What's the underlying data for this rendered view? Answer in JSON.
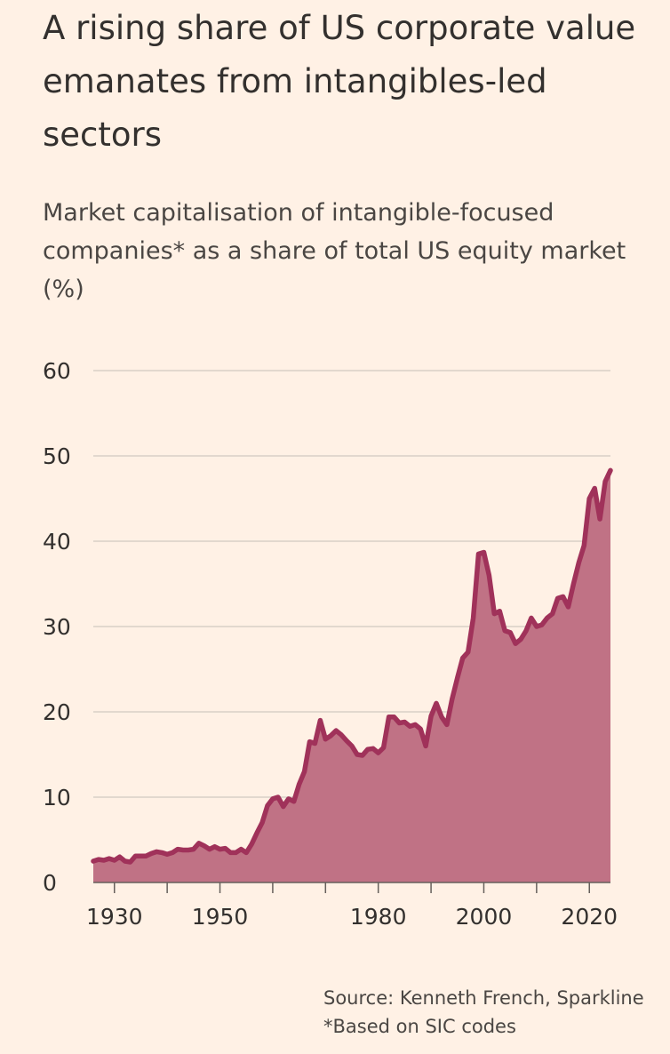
{
  "title": "A rising share of US corporate value emanates from intangibles-led sectors",
  "subtitle": "Market capitalisation of intangible-focused companies* as a share of total US equity market (%)",
  "source": "Source: Kenneth French, Sparkline",
  "footnote": "*Based on SIC codes",
  "colors": {
    "background": "#FFF1E5",
    "line": "#A0325A",
    "fill": "#C07285",
    "grid": "#D9CFC7",
    "text": "#33302E"
  },
  "chart_data": {
    "type": "area",
    "title": "A rising share of US corporate value emanates from intangibles-led sectors",
    "subtitle": "Market capitalisation of intangible-focused companies* as a share of total US equity market (%)",
    "xlabel": "",
    "ylabel": "",
    "xlim": [
      1926,
      2024
    ],
    "ylim": [
      0,
      60
    ],
    "grid": true,
    "legend": "none",
    "x_ticks": [
      1930,
      1950,
      1980,
      2000,
      2020
    ],
    "y_ticks": [
      0,
      10,
      20,
      30,
      40,
      50,
      60
    ],
    "x": [
      1926,
      1927,
      1928,
      1929,
      1930,
      1931,
      1932,
      1933,
      1934,
      1935,
      1936,
      1937,
      1938,
      1939,
      1940,
      1941,
      1942,
      1943,
      1944,
      1945,
      1946,
      1947,
      1948,
      1949,
      1950,
      1951,
      1952,
      1953,
      1954,
      1955,
      1956,
      1957,
      1958,
      1959,
      1960,
      1961,
      1962,
      1963,
      1964,
      1965,
      1966,
      1967,
      1968,
      1969,
      1970,
      1971,
      1972,
      1973,
      1974,
      1975,
      1976,
      1977,
      1978,
      1979,
      1980,
      1981,
      1982,
      1983,
      1984,
      1985,
      1986,
      1987,
      1988,
      1989,
      1990,
      1991,
      1992,
      1993,
      1994,
      1995,
      1996,
      1997,
      1998,
      1999,
      2000,
      2001,
      2002,
      2003,
      2004,
      2005,
      2006,
      2007,
      2008,
      2009,
      2010,
      2011,
      2012,
      2013,
      2014,
      2015,
      2016,
      2017,
      2018,
      2019,
      2020,
      2021,
      2022,
      2023,
      2024
    ],
    "series": [
      {
        "values": [
          2.5,
          2.7,
          2.6,
          2.8,
          2.6,
          3.0,
          2.5,
          2.4,
          3.1,
          3.1,
          3.1,
          3.4,
          3.6,
          3.5,
          3.3,
          3.5,
          3.9,
          3.8,
          3.8,
          3.9,
          4.6,
          4.3,
          3.9,
          4.2,
          3.9,
          4.0,
          3.5,
          3.5,
          3.9,
          3.5,
          4.5,
          5.8,
          7.0,
          9.0,
          9.8,
          10.0,
          8.9,
          9.8,
          9.5,
          11.5,
          13.0,
          16.5,
          16.3,
          19.0,
          16.8,
          17.2,
          17.8,
          17.3,
          16.6,
          16.0,
          15.0,
          14.9,
          15.6,
          15.7,
          15.2,
          15.8,
          19.4,
          19.4,
          18.7,
          18.8,
          18.3,
          18.5,
          18.0,
          16.0,
          19.5,
          21.0,
          19.4,
          18.5,
          21.5,
          24.0,
          26.3,
          27.0,
          31.0,
          38.5,
          38.7,
          36.0,
          31.5,
          31.8,
          29.5,
          29.3,
          28.0,
          28.5,
          29.5,
          31.0,
          30.0,
          30.2,
          31.0,
          31.5,
          33.3,
          33.5,
          32.3,
          35.0,
          37.5,
          39.5,
          45.0,
          46.2,
          42.6,
          47.0,
          48.3
        ]
      }
    ]
  }
}
